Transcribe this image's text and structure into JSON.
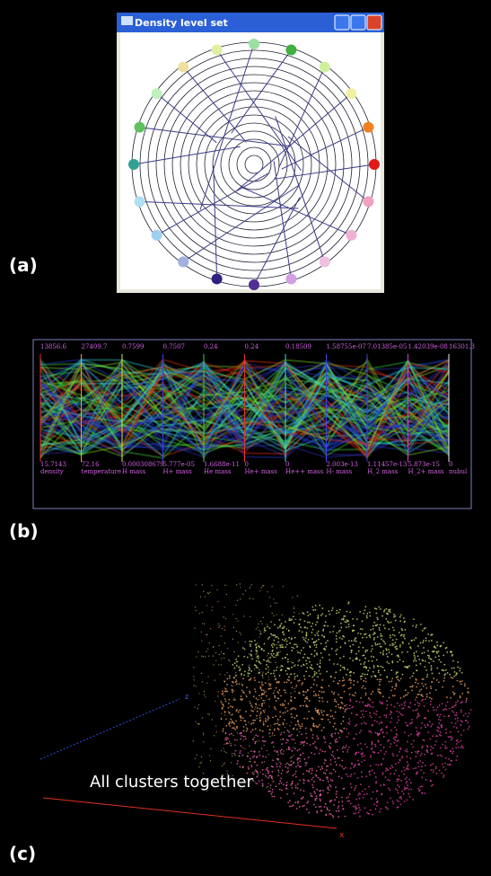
{
  "panels": {
    "a": {
      "label": "(a)",
      "window_title": "Density level set"
    },
    "b": {
      "label": "(b)",
      "axes": [
        {
          "top": "13856.6",
          "bottom": "15.7143",
          "name": "density"
        },
        {
          "top": "27409.7",
          "bottom": "72.16",
          "name": "temperature"
        },
        {
          "top": "0.7599",
          "bottom": "0.000308679",
          "name": "H mass"
        },
        {
          "top": "0.7507",
          "bottom": "5.777e-05",
          "name": "H+ mass"
        },
        {
          "top": "0.24",
          "bottom": "1.6688e-11",
          "name": "He mass"
        },
        {
          "top": "0.24",
          "bottom": "0",
          "name": "He+ mass"
        },
        {
          "top": "0.18509",
          "bottom": "0",
          "name": "He++ mass"
        },
        {
          "top": "1.58755e-07",
          "bottom": "2.003e-13",
          "name": "H- mass"
        },
        {
          "top": "7.01385e-05",
          "bottom": "1.11457e-13",
          "name": "H_2 mass"
        },
        {
          "top": "1.42039e-08",
          "bottom": "5.873e-15",
          "name": "H_2+ mass"
        },
        {
          "top": "16301.3",
          "bottom": "0",
          "name": "nubul"
        }
      ]
    },
    "c": {
      "label": "(c)",
      "caption": "All clusters together",
      "x_axis": "x",
      "z_axis": "z"
    }
  }
}
